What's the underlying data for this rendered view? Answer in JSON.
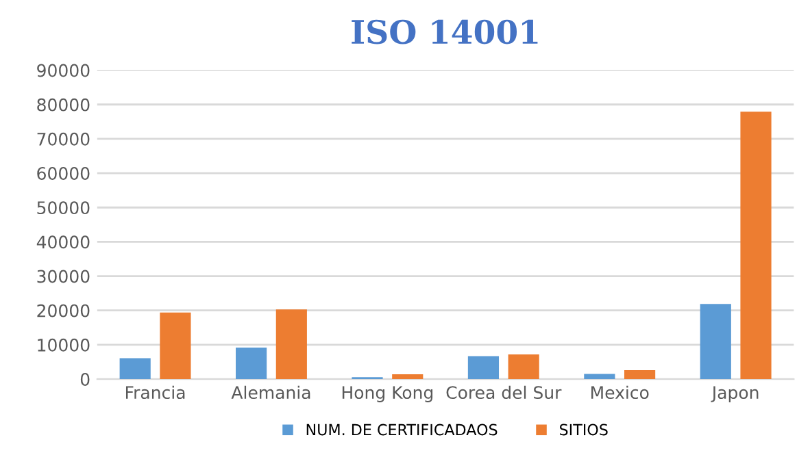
{
  "chart_data": {
    "type": "bar",
    "title": "ISO 14001",
    "categories": [
      "Francia",
      "Alemania",
      "Hong Kong",
      "Corea del Sur",
      "Mexico",
      "Japon"
    ],
    "series": [
      {
        "name": "NUM. DE CERTIFICADAOS",
        "color": "#5b9bd5",
        "values": [
          6100,
          9200,
          550,
          6700,
          1500,
          21900
        ]
      },
      {
        "name": "SITIOS",
        "color": "#ed7d31",
        "values": [
          19400,
          20300,
          1400,
          7200,
          2600,
          77900
        ]
      }
    ],
    "ylim": [
      0,
      90000
    ],
    "yticks": [
      0,
      10000,
      20000,
      30000,
      40000,
      50000,
      60000,
      70000,
      80000,
      90000
    ],
    "grid": "y",
    "legend": "bottom"
  }
}
